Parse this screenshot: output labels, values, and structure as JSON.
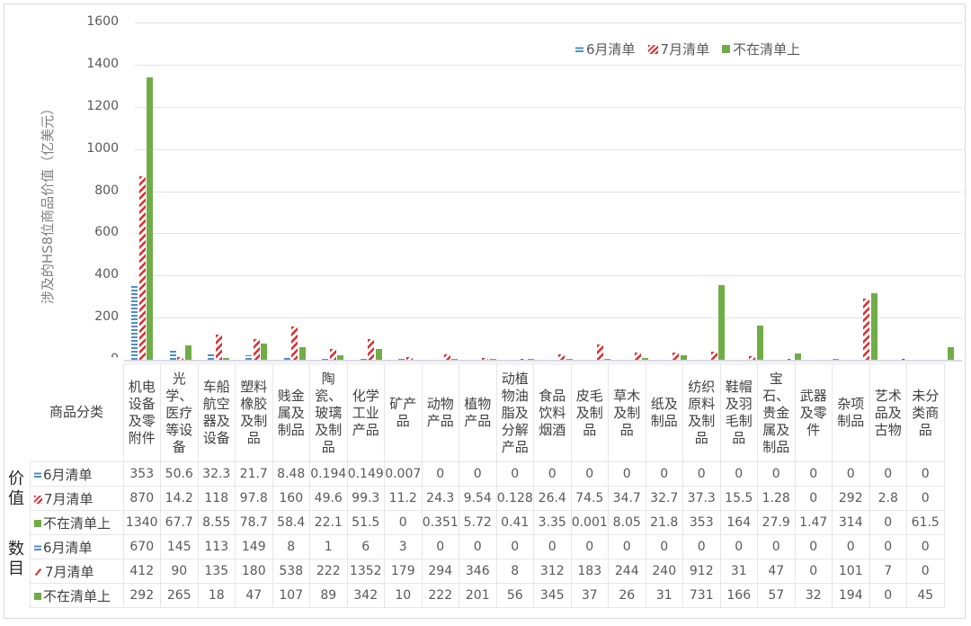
{
  "chart_data": {
    "type": "bar",
    "title": "",
    "ylabel": "涉及的HS8位商品价值（亿美元）",
    "xlabel": "商品分类",
    "ylim": [
      0,
      1600
    ],
    "yticks": [
      "0",
      "200",
      "400",
      "600",
      "800",
      "1000",
      "1200",
      "1400",
      "1600"
    ],
    "grid": true,
    "legend_position": "top-right",
    "categories": [
      "机电设备及零附件",
      "光学、医疗等设备",
      "车船航空器及设备",
      "塑料橡胶及制品",
      "贱金属及制品",
      "陶瓷、玻璃及制品",
      "化学工业产品",
      "矿产品",
      "动物产品",
      "植物产品",
      "动植物油脂及分解产品",
      "食品饮料烟酒",
      "皮毛及制品",
      "草木及制品",
      "纸及制品",
      "纺织原料及制品",
      "鞋帽及羽毛制品",
      "宝石、贵金属及制品",
      "武器及零件",
      "杂项制品",
      "艺术品及古物",
      "未分类商品"
    ],
    "series": [
      {
        "name": "6月清单",
        "values": [
          353,
          50.6,
          32.3,
          21.7,
          8.48,
          0.194,
          0.149,
          0.007,
          0,
          0,
          0,
          0,
          0,
          0,
          0,
          0,
          0,
          0,
          0,
          0,
          0,
          0
        ]
      },
      {
        "name": "7月清单",
        "values": [
          870,
          14.2,
          118,
          97.8,
          160,
          49.6,
          99.3,
          11.2,
          24.3,
          9.54,
          0.128,
          26.4,
          74.5,
          34.7,
          32.7,
          37.3,
          15.5,
          1.28,
          0,
          292,
          2.8,
          0
        ]
      },
      {
        "name": "不在清单上",
        "values": [
          1340,
          67.7,
          8.55,
          78.7,
          58.4,
          22.1,
          51.5,
          0,
          0.351,
          5.72,
          0.41,
          3.35,
          0.001,
          8.05,
          21.8,
          353,
          164,
          27.9,
          1.47,
          314,
          0,
          61.5
        ]
      }
    ],
    "table": {
      "value_rows": [
        {
          "name": "6月清单",
          "values": [
            "353",
            "50.6",
            "32.3",
            "21.7",
            "8.48",
            "0.194",
            "0.149",
            "0.007",
            "0",
            "0",
            "0",
            "0",
            "0",
            "0",
            "0",
            "0",
            "0",
            "0",
            "0",
            "0",
            "0",
            "0"
          ]
        },
        {
          "name": "7月清单",
          "values": [
            "870",
            "14.2",
            "118",
            "97.8",
            "160",
            "49.6",
            "99.3",
            "11.2",
            "24.3",
            "9.54",
            "0.128",
            "26.4",
            "74.5",
            "34.7",
            "32.7",
            "37.3",
            "15.5",
            "1.28",
            "0",
            "292",
            "2.8",
            "0"
          ]
        },
        {
          "name": "不在清单上",
          "values": [
            "1340",
            "67.7",
            "8.55",
            "78.7",
            "58.4",
            "22.1",
            "51.5",
            "0",
            "0.351",
            "5.72",
            "0.41",
            "3.35",
            "0.001",
            "8.05",
            "21.8",
            "353",
            "164",
            "27.9",
            "1.47",
            "314",
            "0",
            "61.5"
          ]
        }
      ],
      "count_rows": [
        {
          "name": "6月清单",
          "values": [
            "670",
            "145",
            "113",
            "149",
            "8",
            "1",
            "6",
            "3",
            "0",
            "0",
            "0",
            "0",
            "0",
            "0",
            "0",
            "0",
            "0",
            "0",
            "0",
            "0",
            "0",
            "0"
          ]
        },
        {
          "name": "7月清单",
          "values": [
            "412",
            "90",
            "135",
            "180",
            "538",
            "222",
            "1352",
            "179",
            "294",
            "346",
            "8",
            "312",
            "183",
            "244",
            "240",
            "912",
            "31",
            "47",
            "0",
            "101",
            "7",
            "0"
          ]
        },
        {
          "name": "不在清单上",
          "values": [
            "292",
            "265",
            "18",
            "47",
            "107",
            "89",
            "342",
            "10",
            "222",
            "201",
            "56",
            "345",
            "37",
            "26",
            "31",
            "731",
            "166",
            "57",
            "32",
            "194",
            "0",
            "45"
          ]
        }
      ]
    }
  },
  "labels": {
    "category_header": "商品分类",
    "value_group": "价值",
    "count_group": "数目"
  },
  "legend": {
    "s6": "6月清单",
    "s7": "7月清单",
    "sn": "不在清单上"
  },
  "colors": {
    "june": "#4f8dc6",
    "july": "#e32a2a",
    "not_listed": "#70ad47"
  }
}
